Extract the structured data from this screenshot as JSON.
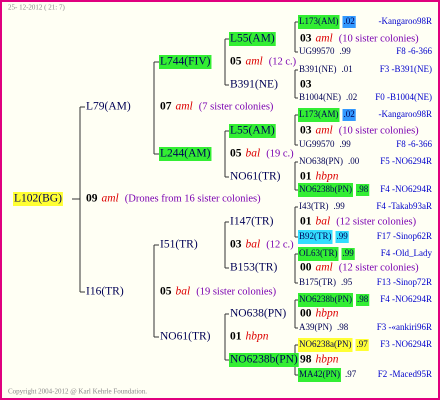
{
  "timestamp": "25- 12-2012 ( 21: 7)",
  "copyright": "Copyright 2004-2012 @ Karl Kehrle Foundation.",
  "root": {
    "label": "L102(BG)",
    "year": "09",
    "race": "aml",
    "note": "(Drones from 16 sister colonies)"
  },
  "generation_1": [
    {
      "label": "L79(AM)",
      "year": "07",
      "race": "aml",
      "note": "(7 sister colonies)"
    },
    {
      "label": "I16(TR)",
      "year": "05",
      "race": "bal",
      "note": "(19 sister colonies)"
    }
  ],
  "generation_2": [
    {
      "label": "L744(FIV)",
      "year": "05",
      "race": "aml",
      "note": "(12 c.)"
    },
    {
      "label": "L244(AM)",
      "year": "05",
      "race": "bal",
      "note": "(19 c.)"
    },
    {
      "label": "I51(TR)",
      "year": "03",
      "race": "bal",
      "note": "(12 c.)"
    },
    {
      "label": "NO61(TR)",
      "year": "01",
      "race": "hbpn"
    }
  ],
  "generation_3": [
    {
      "label": "L55(AM)",
      "year": "03",
      "race": "aml",
      "note": "(10 sister colonies)"
    },
    {
      "label": "B391(NE)",
      "year": "03"
    },
    {
      "label": "L55(AM)",
      "year": "03",
      "race": "aml",
      "note": "(10 sister colonies)"
    },
    {
      "label": "NO61(TR)",
      "year": "01",
      "race": "hbpn"
    },
    {
      "label": "I147(TR)",
      "year": "01",
      "race": "bal",
      "note": "(12 sister colonies)"
    },
    {
      "label": "B153(TR)",
      "year": "00",
      "race": "aml",
      "note": "(12 sister colonies)"
    },
    {
      "label": "NO638(PN)",
      "year": "00",
      "race": "hbpn"
    },
    {
      "label": "NO6238b(PN)",
      "year": "98",
      "race": "hbpn"
    }
  ],
  "generation_4": [
    {
      "label": "L173(AM)",
      "value": ".02",
      "origin": "-Kangaroo98R"
    },
    {
      "label": "UG99570",
      "value": ".99",
      "origin": "F8 -6-366"
    },
    {
      "label": "B391(NE)",
      "value": ".01",
      "origin": "F3 -B391(NE)"
    },
    {
      "label": "B1004(NE)",
      "value": ".02",
      "origin": "F0 -B1004(NE)"
    },
    {
      "label": "L173(AM)",
      "value": ".02",
      "origin": "-Kangaroo98R"
    },
    {
      "label": "UG99570",
      "value": ".99",
      "origin": "F8 -6-366"
    },
    {
      "label": "NO638(PN)",
      "value": ".00",
      "origin": "F5 -NO6294R"
    },
    {
      "label": "NO6238b(PN)",
      "value": ".98",
      "origin": "F4 -NO6294R"
    },
    {
      "label": "I43(TR)",
      "value": ".99",
      "origin": "F4 -Takab93aR"
    },
    {
      "label": "B92(TR)",
      "value": ".99",
      "origin": "F17 -Sinop62R"
    },
    {
      "label": "OL63(TR)",
      "value": ".99",
      "origin": "F4 -Old_Lady"
    },
    {
      "label": "B175(TR)",
      "value": ".95",
      "origin": "F13 -Sinop72R"
    },
    {
      "label": "NO6238b(PN)",
      "value": ".98",
      "origin": "F4 -NO6294R"
    },
    {
      "label": "A39(PN)",
      "value": ".98",
      "origin": "F3 -«ankiri96R"
    },
    {
      "label": "NO6238a(PN)",
      "value": ".97",
      "origin": "F3 -NO6294R"
    },
    {
      "label": "MA42(PN)",
      "value": ".97",
      "origin": "F2 -Maced95R"
    }
  ]
}
